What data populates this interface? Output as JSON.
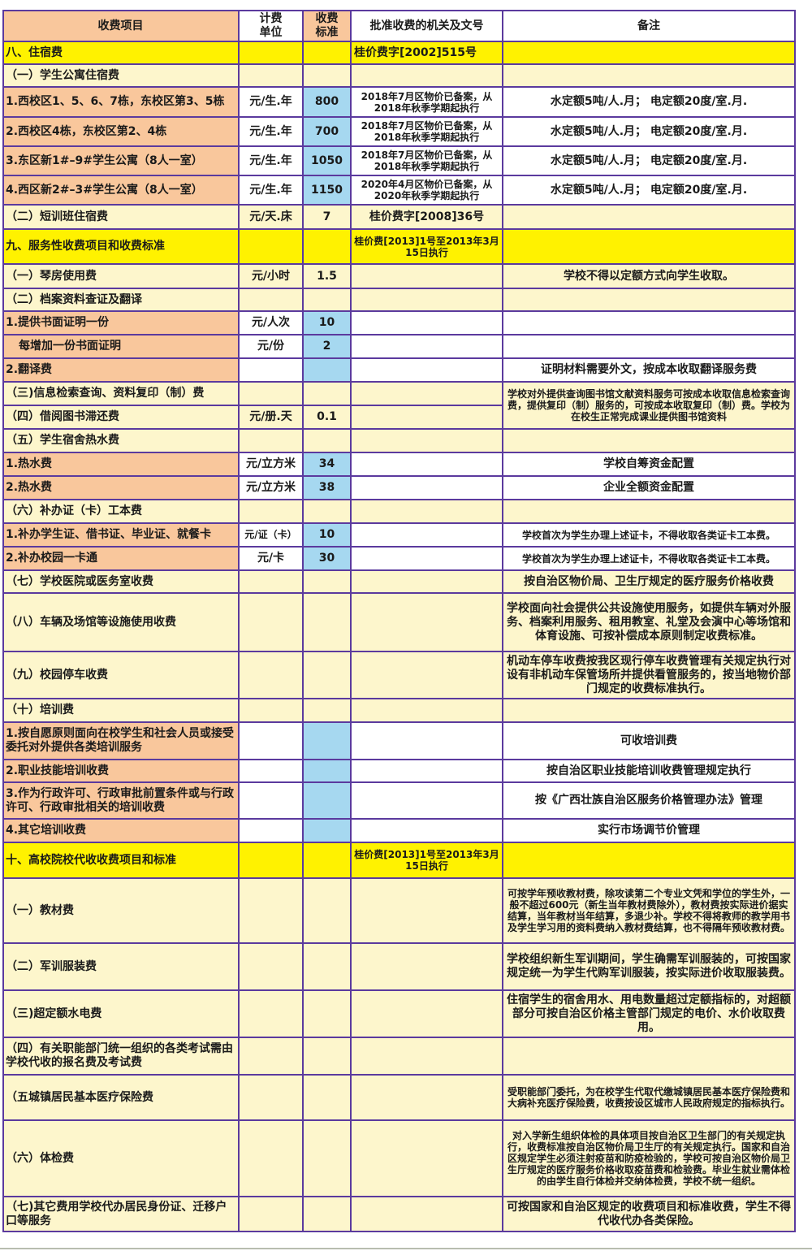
{
  "header": {
    "item": "收费项目",
    "unit": "计费\n单位",
    "standard": "收费\n标准",
    "approval": "批准收费的机关及文号",
    "remark": "备注"
  },
  "colors": {
    "section": "#fff200",
    "sub": "#fdf6cc",
    "item": "#f9c79c",
    "standard": "#a6d8f0",
    "border": "#5b3a9e"
  },
  "rows": [
    {
      "type": "section",
      "item": "八、住宿费",
      "unit": "",
      "standard": "",
      "approval": "桂价费字[2002]515号",
      "remark": ""
    },
    {
      "type": "sub",
      "item": "（一）学生公寓住宿费",
      "unit": "",
      "standard": "",
      "approval": "",
      "remark": ""
    },
    {
      "type": "item",
      "item": "1.西校区1、5、6、7栋，东校区第3、5栋",
      "unit": "元/生.年",
      "standard": "800",
      "approval": "2018年7月区物价已备案，从2018年秋季学期起执行",
      "remark": "水定额5吨/人.月； 电定额20度/室.月."
    },
    {
      "type": "item",
      "item": "2.西校区4栋，东校区第2、4栋",
      "unit": "元/生.年",
      "standard": "700",
      "approval": "2018年7月区物价已备案，从2018年秋季学期起执行",
      "remark": "水定额5吨/人.月； 电定额20度/室.月."
    },
    {
      "type": "item",
      "item": "3.东区新1#–9#学生公寓（8人一室）",
      "unit": "元/生.年",
      "standard": "1050",
      "approval": "2018年7月区物价已备案，从2018年秋季学期起执行",
      "remark": "水定额5吨/人.月； 电定额20度/室.月."
    },
    {
      "type": "item",
      "item": "4.西区新2#–3#学生公寓（8人一室）",
      "unit": "元/生.年",
      "standard": "1150",
      "approval": "2020年4月区物价已备案，从2020年秋季学期起执行",
      "remark": "水定额5吨/人.月； 电定额20度/室.月."
    },
    {
      "type": "sub",
      "item": "（二）短训班住宿费",
      "unit": "元/天.床",
      "standard": "7",
      "approval": "桂价费字[2008]36号",
      "remark": ""
    },
    {
      "type": "section",
      "item": "九、服务性收费项目和收费标准",
      "unit": "",
      "standard": "",
      "approval": "桂价费[2013]1号至2013年3月15日执行",
      "remark": ""
    },
    {
      "type": "sub",
      "item": "（一）琴房使用费",
      "unit": "元/小时",
      "standard": "1.5",
      "approval": "",
      "remark": "学校不得以定额方式向学生收取。"
    },
    {
      "type": "sub",
      "item": "（二）档案资料查证及翻译",
      "unit": "",
      "standard": "",
      "approval": "",
      "remark": ""
    },
    {
      "type": "item",
      "item": "1.提供书面证明一份",
      "unit": "元/人次",
      "standard": "10",
      "approval": "",
      "remark": ""
    },
    {
      "type": "item",
      "item": "每增加一份书面证明",
      "unit": "元/份",
      "standard": "2",
      "approval": "",
      "remark": ""
    },
    {
      "type": "item",
      "item": "2.翻译费",
      "unit": "",
      "standard": "",
      "approval": "",
      "remark": "证明材料需要外文，按成本收取翻译服务费"
    },
    {
      "type": "sub",
      "item": "（三)信息检索查询、资料复印（制）费",
      "unit": "",
      "standard": "",
      "approval": "",
      "remark": "学校对外提供查询图书馆文献资料服务可按成本收取信息检索查询费，提供复印（制）服务的，可按成本收取复印（制）费。学校为在校生正常完成课业提供图书馆资料"
    },
    {
      "type": "sub",
      "item": "（四）借阅图书滞还费",
      "unit": "元/册.天",
      "standard": "0.1",
      "approval": ""
    },
    {
      "type": "sub",
      "item": "（五）学生宿舍热水费",
      "unit": "",
      "standard": "",
      "approval": "",
      "remark": ""
    },
    {
      "type": "item",
      "item": "1.热水费",
      "unit": "元/立方米",
      "standard": "34",
      "approval": "",
      "remark": "学校自筹资金配置"
    },
    {
      "type": "item",
      "item": "2.热水费",
      "unit": "元/立方米",
      "standard": "38",
      "approval": "",
      "remark": "企业全额资金配置"
    },
    {
      "type": "sub",
      "item": "（六）补办证（卡）工本费",
      "unit": "",
      "standard": "",
      "approval": "",
      "remark": ""
    },
    {
      "type": "item",
      "item": "1.补办学生证、借书证、毕业证、就餐卡",
      "unit": "元/证（卡）",
      "standard": "10",
      "approval": "",
      "remark": "学校首次为学生办理上述证卡，不得收取各类证卡工本费。"
    },
    {
      "type": "item",
      "item": "2.补办校园一卡通",
      "unit": "元/卡",
      "standard": "30",
      "approval": "",
      "remark": "学校首次为学生办理上述证卡，不得收取各类证卡工本费。"
    },
    {
      "type": "sub",
      "item": "（七）学校医院或医务室收费",
      "unit": "",
      "standard": "",
      "approval": "",
      "remark": "按自治区物价局、卫生厅规定的医疗服务价格收费"
    },
    {
      "type": "sub",
      "item": "（八）车辆及场馆等设施使用收费",
      "unit": "",
      "standard": "",
      "approval": "",
      "remark": "学校面向社会提供公共设施使用服务，如提供车辆对外服务、档案利用服务、租用教室、礼堂及会演中心等场馆和体育设施、可按补偿成本原则制定收费标准。"
    },
    {
      "type": "sub",
      "item": "（九）校园停车收费",
      "unit": "",
      "standard": "",
      "approval": "",
      "remark": "机动车停车收费按我区现行停车收费管理有关规定执行对设有非机动车保管场所并提供看管服务的，按当地物价部门规定的收费标准执行。"
    },
    {
      "type": "sub",
      "item": "（十）培训费",
      "unit": "",
      "standard": "",
      "approval": "",
      "remark": ""
    },
    {
      "type": "item",
      "item": "1.按自愿原则面向在校学生和社会人员或接受委托对外提供各类培训服务",
      "unit": "",
      "standard": "",
      "approval": "",
      "remark": "可收培训费"
    },
    {
      "type": "item",
      "item": "2.职业技能培训收费",
      "unit": "",
      "standard": "",
      "approval": "",
      "remark": "按自治区职业技能培训收费管理规定执行"
    },
    {
      "type": "item",
      "item": "3.作为行政许可、行政审批前置条件或与行政许可、行政审批相关的培训收费",
      "unit": "",
      "standard": "",
      "approval": "",
      "remark": "按《广西壮族自治区服务价格管理办法》管理"
    },
    {
      "type": "item",
      "item": "4.其它培训收费",
      "unit": "",
      "standard": "",
      "approval": "",
      "remark": "实行市场调节价管理"
    },
    {
      "type": "section",
      "item": "十、高校院校代收收费项目和标准",
      "unit": "",
      "standard": "",
      "approval": "桂价费[2013]1号至2013年3月15日执行",
      "remark": ""
    },
    {
      "type": "sub",
      "item": "（一）教材费",
      "unit": "",
      "standard": "",
      "approval": "",
      "remark": "可按学年预收教材费，除攻读第二个专业文凭和学位的学生外，一般不超过600元（新生当年教材费除外），教材费按实际进价据实结算，当年教材当年结算，多退少补。学校不得将教师的教学用书及学生学习用的资料费纳入教材费结算，也不得隔年预收教材费。"
    },
    {
      "type": "sub",
      "item": "（二）军训服装费",
      "unit": "",
      "standard": "",
      "approval": "",
      "remark": "学校组织新生军训期间，学生确需军训服装的，可按国家规定统一为学生代购军训服装，按实际进价收取服装费。"
    },
    {
      "type": "sub",
      "item": "（三)超定额水电费",
      "unit": "",
      "standard": "",
      "approval": "",
      "remark": "住宿学生的宿舍用水、用电数量超过定额指标的，对超额部分可按自治区价格主管部门规定的电价、水价收取费用。"
    },
    {
      "type": "sub",
      "item": "（四）有关职能部门统一组织的各类考试需由学校代收的报名费及考试费",
      "unit": "",
      "standard": "",
      "approval": "",
      "remark": ""
    },
    {
      "type": "sub",
      "item": "（五城镇居民基本医疗保险费",
      "unit": "",
      "standard": "",
      "approval": "",
      "remark": "受职能部门委托，为在校学生代取代缴城镇居民基本医疗保险费和大病补充医疗保险费，收费按设区城市人民政府规定的指标执行。"
    },
    {
      "type": "sub",
      "item": "（六）体检费",
      "unit": "",
      "standard": "",
      "approval": "",
      "remark": "对入学新生组织体检的具体项目按自治区卫生部门的有关规定执行，收费标准按自治区物价局卫生厅的有关规定执行。国家和自治区规定学生必须注射疫苗和防疫检验的，学校可按自治区物价局卫生厅规定的医疗服务价格收取疫苗费和检验费。毕业生就业需体检的由学生自行体检并交纳体检费，学校不统一组织。"
    },
    {
      "type": "sub",
      "item": "（七)其它费用学校代办居民身份证、迁移户口等服务",
      "unit": "",
      "standard": "",
      "approval": "",
      "remark": "可按国家和自治区规定的收费项目和标准收费，学生不得代收代办各类保险。"
    }
  ]
}
